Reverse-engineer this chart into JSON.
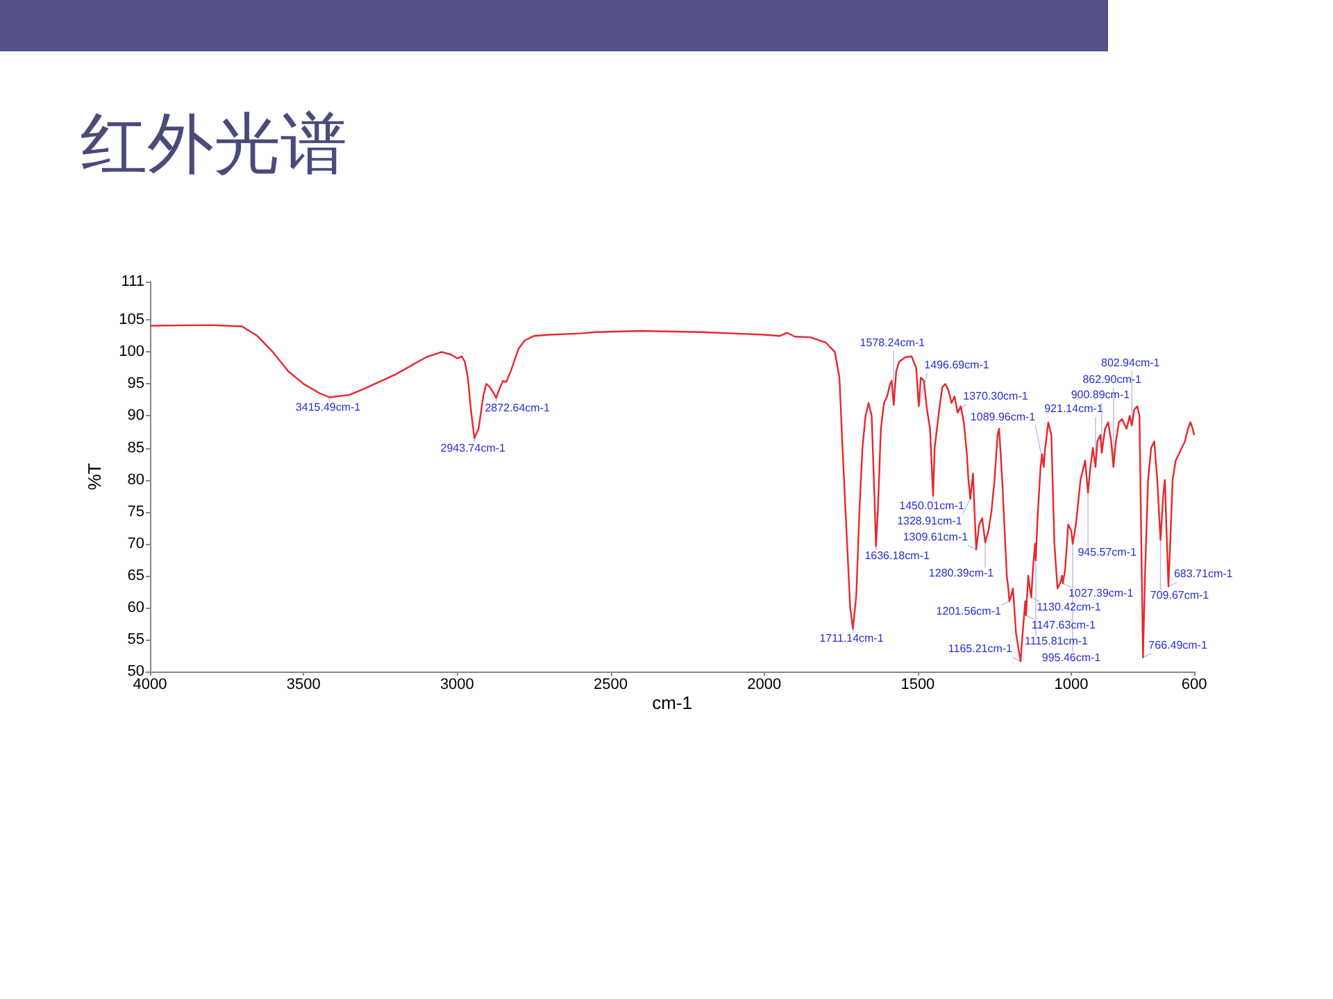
{
  "chart_data": {
    "type": "line",
    "title": "红外光谱",
    "xlabel": "cm-1",
    "ylabel": "%T",
    "xlim": [
      4000,
      600
    ],
    "xticks": [
      4000,
      3500,
      3000,
      2500,
      2000,
      1500,
      1000,
      600
    ],
    "ylim": [
      50,
      111
    ],
    "yticks": [
      50,
      55,
      60,
      65,
      70,
      75,
      80,
      85,
      90,
      95,
      100,
      105,
      111
    ],
    "grid": false,
    "marker": "none",
    "line_style": "solid",
    "series": [
      {
        "color": "#e8262b",
        "x": [
          4000,
          3800,
          3700,
          3650,
          3600,
          3550,
          3500,
          3450,
          3415.49,
          3350,
          3300,
          3200,
          3100,
          3050,
          3020,
          3000,
          2985,
          2975,
          2965,
          2955,
          2943.74,
          2930,
          2915,
          2905,
          2895,
          2880,
          2872.64,
          2860,
          2850,
          2840,
          2825,
          2800,
          2780,
          2750,
          2700,
          2600,
          2550,
          2400,
          2200,
          2100,
          2000,
          1950,
          1925,
          1900,
          1850,
          1800,
          1770,
          1755,
          1745,
          1730,
          1720,
          1711.14,
          1700,
          1690,
          1680,
          1670,
          1660,
          1650,
          1640,
          1636.18,
          1630,
          1620,
          1610,
          1600,
          1590,
          1585,
          1578.24,
          1570,
          1560,
          1540,
          1520,
          1505,
          1496.69,
          1490,
          1480,
          1470,
          1460,
          1450.01,
          1445,
          1430,
          1420,
          1410,
          1400,
          1390,
          1380,
          1370.3,
          1360,
          1350,
          1340,
          1335,
          1328.91,
          1320,
          1315,
          1309.61,
          1300,
          1290,
          1285,
          1280.39,
          1270,
          1260,
          1250,
          1240,
          1235,
          1225,
          1215,
          1210,
          1205,
          1201.56,
          1195,
          1190,
          1180,
          1170,
          1165.21,
          1160,
          1150,
          1147.63,
          1140,
          1135,
          1130.42,
          1125,
          1118,
          1115.81,
          1110,
          1100,
          1095,
          1089.96,
          1085,
          1075,
          1065,
          1055,
          1045,
          1035,
          1030,
          1027.39,
          1020,
          1010,
          1000,
          995.46,
          985,
          970,
          955,
          945.57,
          940,
          930,
          921.14,
          915,
          905,
          900.89,
          890,
          880,
          870,
          862.9,
          855,
          845,
          835,
          820,
          810,
          802.94,
          795,
          785,
          778,
          772,
          766.49,
          760,
          750,
          740,
          730,
          720,
          709.67,
          700,
          695,
          690,
          683.71,
          678,
          670,
          660,
          650,
          640,
          630,
          620,
          612,
          605,
          600
        ],
        "values": [
          104.1,
          104.2,
          104,
          102.5,
          100,
          97,
          95,
          93.6,
          92.9,
          93.3,
          94.3,
          96.5,
          99.2,
          100,
          99.6,
          99,
          99.3,
          98.5,
          96,
          91,
          86.5,
          88,
          93,
          95,
          94.6,
          93.5,
          92.8,
          94.5,
          95.5,
          95.3,
          97,
          100.5,
          101.8,
          102.5,
          102.7,
          102.9,
          103.1,
          103.3,
          103.1,
          102.9,
          102.7,
          102.5,
          103,
          102.4,
          102.3,
          101.5,
          100,
          96,
          85,
          70,
          60,
          56.7,
          62,
          75,
          85,
          90,
          92,
          90,
          76,
          69.6,
          75,
          88,
          92,
          93,
          95,
          95.5,
          91.7,
          97,
          98.5,
          99.2,
          99.3,
          97.5,
          91.5,
          96,
          95.5,
          91,
          88,
          77.5,
          85,
          91,
          94.5,
          95,
          94,
          92,
          93,
          90.5,
          91.5,
          89,
          84,
          80,
          77,
          81,
          75,
          69.1,
          73,
          74,
          72,
          70.2,
          72,
          75,
          80,
          87,
          88,
          80,
          70,
          65,
          63,
          61,
          62,
          63,
          56,
          53,
          51.6,
          55,
          61,
          58.8,
          65,
          63,
          61.6,
          66,
          70,
          67.4,
          74,
          82,
          84,
          82,
          85,
          89,
          87,
          70,
          63,
          64,
          65,
          63.8,
          66,
          73,
          72,
          70,
          73,
          80,
          83,
          78,
          81,
          85,
          82,
          86,
          87,
          84.2,
          88,
          89,
          86,
          82,
          86,
          89,
          89.5,
          88,
          90,
          88.5,
          91,
          91.5,
          90,
          70,
          52.2,
          65,
          80,
          85,
          86,
          80,
          70.6,
          78,
          80,
          72,
          63.3,
          70,
          80,
          83,
          84,
          85,
          86,
          88,
          89,
          88,
          87
        ]
      }
    ],
    "annotations": [
      {
        "text": "3415.49cm-1",
        "x": 3415.49,
        "y": 92.9
      },
      {
        "text": "2943.74cm-1",
        "x": 2943.74,
        "y": 86.5
      },
      {
        "text": "2872.64cm-1",
        "x": 2872.64,
        "y": 92.8
      },
      {
        "text": "1711.14cm-1",
        "x": 1711.14,
        "y": 56.7
      },
      {
        "text": "1636.18cm-1",
        "x": 1636.18,
        "y": 69.6
      },
      {
        "text": "1578.24cm-1",
        "x": 1578.24,
        "y": 91.7
      },
      {
        "text": "1496.69cm-1",
        "x": 1496.69,
        "y": 91.5
      },
      {
        "text": "1450.01cm-1",
        "x": 1450.01,
        "y": 77.5
      },
      {
        "text": "1370.30cm-1",
        "x": 1370.3,
        "y": 90.5
      },
      {
        "text": "1328.91cm-1",
        "x": 1328.91,
        "y": 77
      },
      {
        "text": "1309.61cm-1",
        "x": 1309.61,
        "y": 69.1
      },
      {
        "text": "1280.39cm-1",
        "x": 1280.39,
        "y": 70.2
      },
      {
        "text": "1201.56cm-1",
        "x": 1201.56,
        "y": 61
      },
      {
        "text": "1165.21cm-1",
        "x": 1165.21,
        "y": 51.6
      },
      {
        "text": "1147.63cm-1",
        "x": 1147.63,
        "y": 58.8
      },
      {
        "text": "1130.42cm-1",
        "x": 1130.42,
        "y": 61.6
      },
      {
        "text": "1115.81cm-1",
        "x": 1115.81,
        "y": 67.4
      },
      {
        "text": "1089.96cm-1",
        "x": 1089.96,
        "y": 82
      },
      {
        "text": "1027.39cm-1",
        "x": 1027.39,
        "y": 63.8
      },
      {
        "text": "995.46cm-1",
        "x": 995.46,
        "y": 70
      },
      {
        "text": "945.57cm-1",
        "x": 945.57,
        "y": 78
      },
      {
        "text": "921.14cm-1",
        "x": 921.14,
        "y": 82
      },
      {
        "text": "900.89cm-1",
        "x": 900.89,
        "y": 84.2
      },
      {
        "text": "862.90cm-1",
        "x": 862.9,
        "y": 82
      },
      {
        "text": "802.94cm-1",
        "x": 802.94,
        "y": 88.5
      },
      {
        "text": "766.49cm-1",
        "x": 766.49,
        "y": 52.2
      },
      {
        "text": "709.67cm-1",
        "x": 709.67,
        "y": 70.6
      },
      {
        "text": "683.71cm-1",
        "x": 683.71,
        "y": 63.3
      }
    ]
  }
}
